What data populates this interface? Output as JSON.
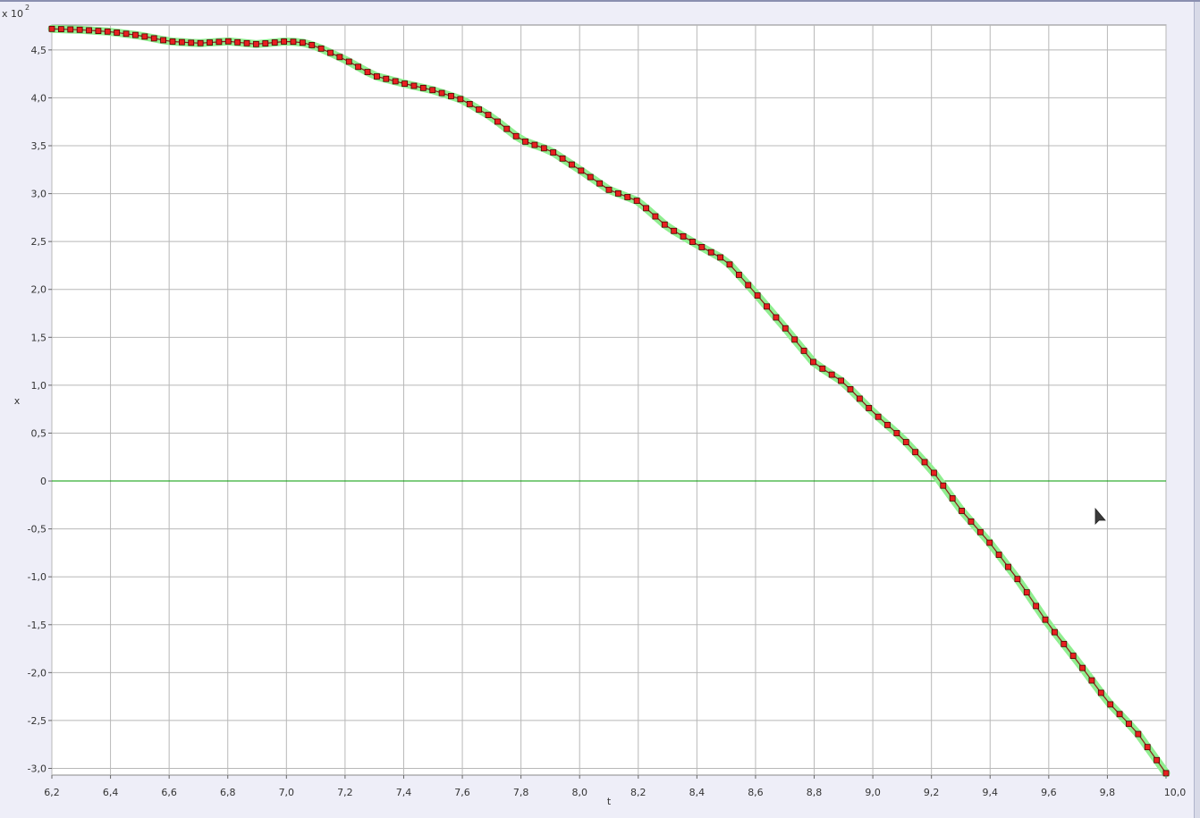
{
  "chart_data": {
    "type": "line",
    "xlabel": "t",
    "ylabel": "x",
    "scale_label": "x 10",
    "scale_exponent": "2",
    "xlim": [
      6.2,
      10.0
    ],
    "ylim": [
      -3.07,
      4.76
    ],
    "x_ticks": [
      6.2,
      6.4,
      6.6,
      6.8,
      7.0,
      7.2,
      7.4,
      7.6,
      7.8,
      8.0,
      8.2,
      8.4,
      8.6,
      8.8,
      9.0,
      9.2,
      9.4,
      9.6,
      9.8,
      10.0
    ],
    "x_tick_labels": [
      "6,2",
      "6,4",
      "6,6",
      "6,8",
      "7,0",
      "7,2",
      "7,4",
      "7,6",
      "7,8",
      "8,0",
      "8,2",
      "8,4",
      "8,6",
      "8,8",
      "9,0",
      "9,2",
      "9,4",
      "9,6",
      "9,8",
      "10,0"
    ],
    "y_ticks": [
      -3.0,
      -2.5,
      -2.0,
      -1.5,
      -1.0,
      -0.5,
      0,
      0.5,
      1.0,
      1.5,
      2.0,
      2.5,
      3.0,
      3.5,
      4.0,
      4.5
    ],
    "y_tick_labels": [
      "-3,0",
      "-2,5",
      "-2,0",
      "-1,5",
      "-1,0",
      "-0,5",
      "0",
      "0,5",
      "1,0",
      "1,5",
      "2,0",
      "2,5",
      "3,0",
      "3,5",
      "4,0",
      "4,5"
    ],
    "grid": true,
    "zero_line": true,
    "colors": {
      "line": "#8b1a1a",
      "marker_fill": "#e82020",
      "marker_edge": "#500000",
      "highlight": "#90ee90",
      "zero_line": "#009900",
      "grid": "#b8b8b8"
    },
    "keypoints": [
      [
        6.2,
        4.72
      ],
      [
        6.3,
        4.71
      ],
      [
        6.4,
        4.69
      ],
      [
        6.5,
        4.65
      ],
      [
        6.6,
        4.59
      ],
      [
        6.7,
        4.57
      ],
      [
        6.8,
        4.59
      ],
      [
        6.9,
        4.56
      ],
      [
        7.0,
        4.59
      ],
      [
        7.05,
        4.58
      ],
      [
        7.1,
        4.54
      ],
      [
        7.2,
        4.4
      ],
      [
        7.3,
        4.23
      ],
      [
        7.4,
        4.15
      ],
      [
        7.5,
        4.08
      ],
      [
        7.6,
        3.98
      ],
      [
        7.7,
        3.8
      ],
      [
        7.8,
        3.56
      ],
      [
        7.9,
        3.45
      ],
      [
        8.0,
        3.25
      ],
      [
        8.1,
        3.04
      ],
      [
        8.2,
        2.92
      ],
      [
        8.3,
        2.65
      ],
      [
        8.4,
        2.47
      ],
      [
        8.5,
        2.3
      ],
      [
        8.6,
        1.96
      ],
      [
        8.7,
        1.6
      ],
      [
        8.8,
        1.23
      ],
      [
        8.9,
        1.03
      ],
      [
        9.0,
        0.72
      ],
      [
        9.1,
        0.45
      ],
      [
        9.2,
        0.12
      ],
      [
        9.3,
        -0.3
      ],
      [
        9.4,
        -0.65
      ],
      [
        9.5,
        -1.05
      ],
      [
        9.6,
        -1.5
      ],
      [
        9.7,
        -1.89
      ],
      [
        9.8,
        -2.3
      ],
      [
        9.9,
        -2.62
      ],
      [
        10.0,
        -3.05
      ]
    ],
    "n_points": 121
  }
}
